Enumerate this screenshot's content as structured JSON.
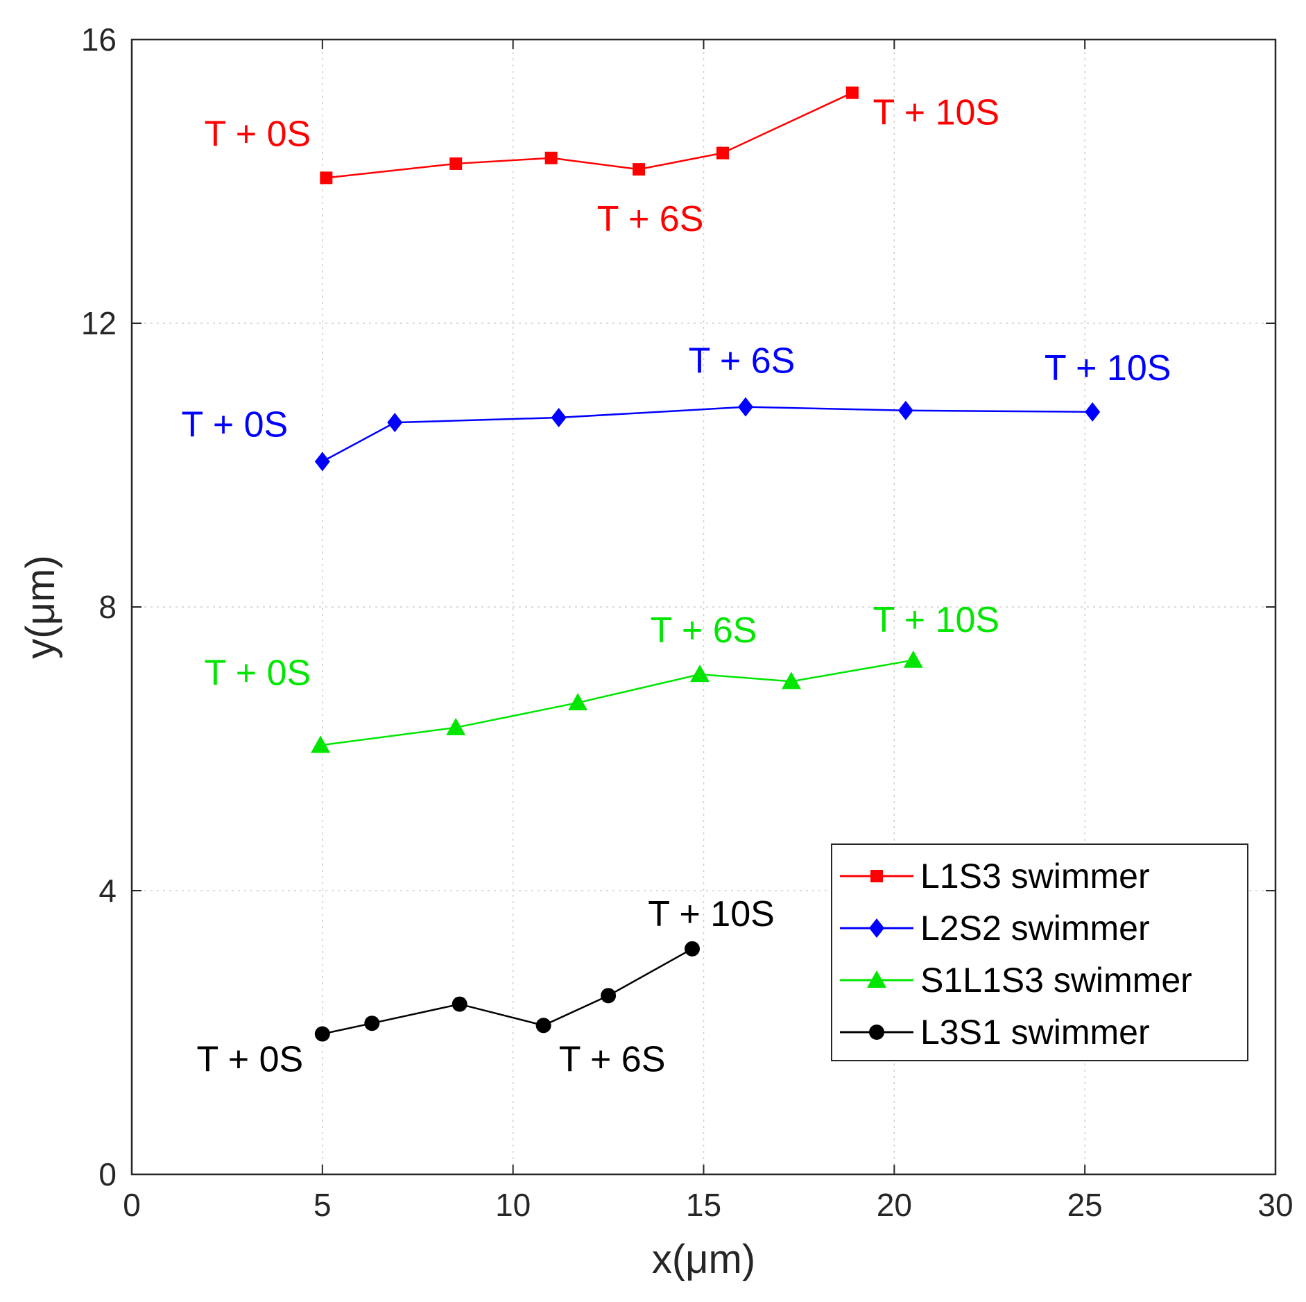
{
  "chart_data": {
    "type": "line",
    "title": "",
    "xlabel": "x(μm)",
    "ylabel": "y(μm)",
    "xlim": [
      0,
      30
    ],
    "ylim": [
      0,
      16
    ],
    "xticks": [
      0,
      5,
      10,
      15,
      20,
      25,
      30
    ],
    "yticks": [
      0,
      4,
      8,
      12,
      16
    ],
    "grid": true,
    "legend_position": "bottom-right",
    "series": [
      {
        "name": "L1S3 swimmer",
        "color": "#ff0000",
        "marker": "square",
        "x": [
          5.1,
          8.5,
          11.0,
          13.3,
          15.5,
          18.9
        ],
        "y": [
          14.05,
          14.25,
          14.33,
          14.17,
          14.4,
          15.25
        ],
        "annotations": [
          {
            "text": "T + 0S",
            "x": 3.3,
            "y": 14.5
          },
          {
            "text": "T + 6S",
            "x": 13.6,
            "y": 13.3
          },
          {
            "text": "T + 10S",
            "x": 21.1,
            "y": 14.8
          }
        ]
      },
      {
        "name": "L2S2 swimmer",
        "color": "#0000ff",
        "marker": "diamond",
        "x": [
          5.0,
          6.9,
          11.2,
          16.1,
          20.3,
          25.2
        ],
        "y": [
          10.05,
          10.6,
          10.67,
          10.82,
          10.77,
          10.75
        ],
        "annotations": [
          {
            "text": "T + 0S",
            "x": 2.7,
            "y": 10.4
          },
          {
            "text": "T + 6S",
            "x": 16.0,
            "y": 11.3
          },
          {
            "text": "T + 10S",
            "x": 25.6,
            "y": 11.2
          }
        ]
      },
      {
        "name": "S1L1S3 swimmer",
        "color": "#00e600",
        "marker": "triangle",
        "x": [
          4.95,
          8.5,
          11.7,
          14.9,
          17.3,
          20.5
        ],
        "y": [
          6.05,
          6.3,
          6.65,
          7.05,
          6.95,
          7.25
        ],
        "annotations": [
          {
            "text": "T + 0S",
            "x": 3.3,
            "y": 6.9
          },
          {
            "text": "T + 6S",
            "x": 15.0,
            "y": 7.5
          },
          {
            "text": "T + 10S",
            "x": 21.1,
            "y": 7.65
          }
        ]
      },
      {
        "name": "L3S1 swimmer",
        "color": "#000000",
        "marker": "circle",
        "x": [
          5.0,
          6.3,
          8.6,
          10.8,
          12.5,
          14.7
        ],
        "y": [
          1.98,
          2.13,
          2.4,
          2.1,
          2.52,
          3.18
        ],
        "annotations": [
          {
            "text": "T + 0S",
            "x": 3.1,
            "y": 1.45
          },
          {
            "text": "T + 6S",
            "x": 12.6,
            "y": 1.45
          },
          {
            "text": "T + 10S",
            "x": 15.2,
            "y": 3.5
          }
        ]
      }
    ]
  }
}
